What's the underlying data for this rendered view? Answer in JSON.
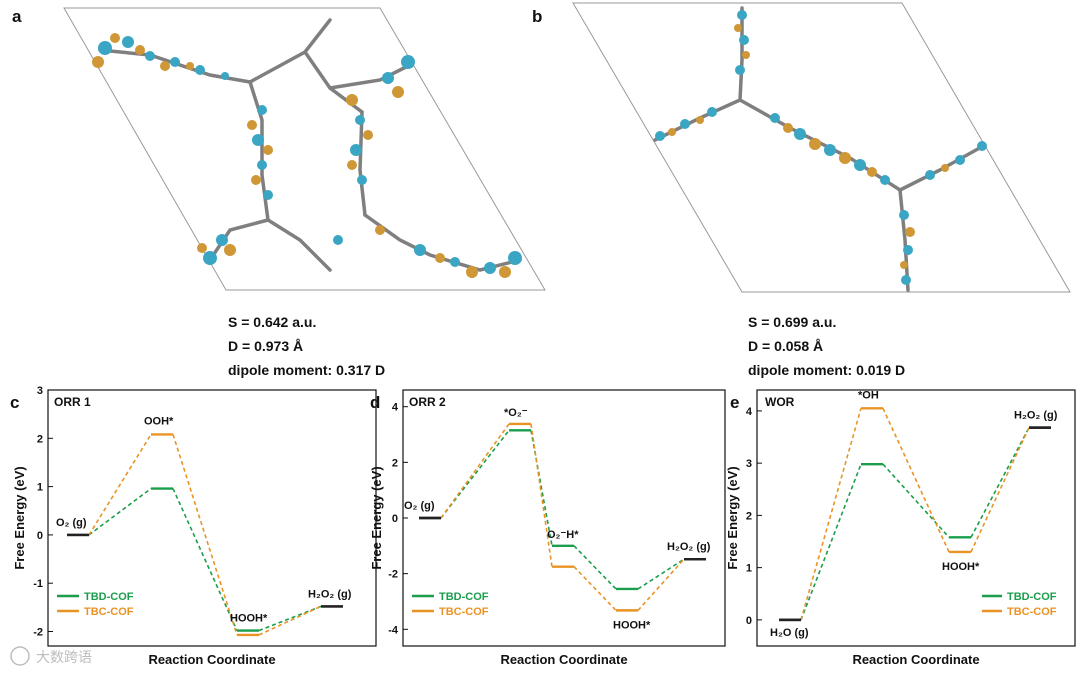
{
  "colors": {
    "tbd": "#1a9e4c",
    "tbc": "#ea9325",
    "endpoint": "#222222",
    "cyan": "#3aa6c4",
    "gold": "#cf9736"
  },
  "panel_letters": {
    "a": "a",
    "b": "b",
    "c": "c",
    "d": "d",
    "e": "e"
  },
  "structures": [
    {
      "label": "a",
      "s_text": "S = 0.642 a.u.",
      "d_text": "D = 0.973 Å",
      "dipole_text": "dipole moment: 0.317 D"
    },
    {
      "label": "b",
      "s_text": "S = 0.699 a.u.",
      "d_text": "D = 0.058 Å",
      "dipole_text": "dipole moment: 0.019 D"
    }
  ],
  "legend": {
    "tbd": "TBD-COF",
    "tbc": "TBC-COF"
  },
  "watermark": "大数跨语",
  "chart_data": [
    {
      "type": "line",
      "panel": "c",
      "title": "ORR 1",
      "xlabel": "Reaction Coordinate",
      "ylabel": "Free Energy (eV)",
      "ylim": [
        -2.3,
        3
      ],
      "yticks": [
        "-2",
        "-1",
        "0",
        "1",
        "2",
        "3"
      ],
      "states": [
        "O2 (g)",
        "OOH*",
        "HOOH*",
        "H2O2 (g)"
      ],
      "state_labels": [
        "O₂ (g)",
        "OOH*",
        "HOOH*",
        "H₂O₂ (g)"
      ],
      "series": [
        {
          "name": "TBD-COF",
          "values": [
            0,
            0.96,
            -1.98,
            -1.48
          ]
        },
        {
          "name": "TBC-COF",
          "values": [
            0,
            2.08,
            -2.07,
            -1.48
          ]
        }
      ]
    },
    {
      "type": "line",
      "panel": "d",
      "title": "ORR 2",
      "xlabel": "Reaction Coordinate",
      "ylabel": "Free Energy (eV)",
      "ylim": [
        -4.6,
        4.6
      ],
      "yticks": [
        "-4",
        "-2",
        "0",
        "2",
        "4"
      ],
      "states": [
        "O2 (g)",
        "*O2-",
        "O2-H*",
        "HOOH*",
        "H2O2 (g)"
      ],
      "state_labels": [
        "O₂ (g)",
        "*O₂⁻",
        "O₂⁻H*",
        "HOOH*",
        "H₂O₂ (g)"
      ],
      "series": [
        {
          "name": "TBD-COF",
          "values": [
            0,
            3.15,
            -1.0,
            -2.55,
            -1.48
          ]
        },
        {
          "name": "TBC-COF",
          "values": [
            0,
            3.38,
            -1.75,
            -3.32,
            -1.48
          ]
        }
      ]
    },
    {
      "type": "line",
      "panel": "e",
      "title": "WOR",
      "xlabel": "Reaction Coordinate",
      "ylabel": "Free Energy (eV)",
      "ylim": [
        -0.5,
        4.4
      ],
      "yticks": [
        "0",
        "1",
        "2",
        "3",
        "4"
      ],
      "states": [
        "H2O (g)",
        "*OH",
        "HOOH*",
        "H2O2 (g)"
      ],
      "state_labels": [
        "H₂O (g)",
        "*OH",
        "HOOH*",
        "H₂O₂ (g)"
      ],
      "series": [
        {
          "name": "TBD-COF",
          "values": [
            0,
            2.98,
            1.58,
            3.68
          ]
        },
        {
          "name": "TBC-COF",
          "values": [
            0,
            4.05,
            1.3,
            3.68
          ]
        }
      ]
    }
  ]
}
